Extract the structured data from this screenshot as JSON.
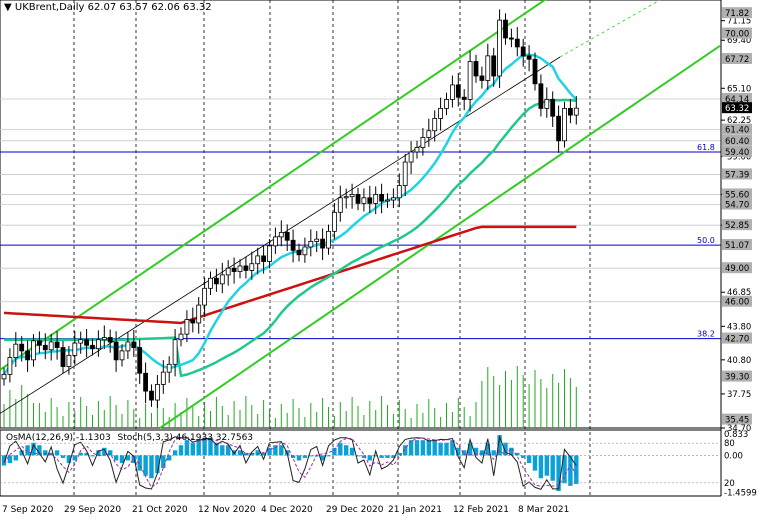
{
  "header": {
    "symbol": "UKBrent,Daily",
    "ohlc": "62.07 63.57 62.06 63.32"
  },
  "indicator_header": {
    "osma": "OsMA(12,26,9) -1.1303",
    "stoch": "Stoch(5,3,3) 46.1933 32.7563"
  },
  "colors": {
    "background": "#ffffff",
    "candle": "#000000",
    "ma_short": "#1fd3e6",
    "ma_mid": "#1ec98a",
    "ma_long": "#cc1111",
    "channel": "#33cc22",
    "fib": "#0000cc",
    "osma_bar": "#0aa0d8",
    "stoch_main": "#222222",
    "stoch_signal": "#9b2f9b",
    "price_tag": "#000000",
    "volume": "#22aa22"
  },
  "chart_data": [
    {
      "type": "candlestick",
      "title": "UKBrent,Daily",
      "x_labels": [
        "7 Sep 2020",
        "29 Sep 2020",
        "21 Oct 2020",
        "12 Nov 2020",
        "4 Dec 2020",
        "29 Dec 2020",
        "21 Jan 2021",
        "12 Feb 2021",
        "8 Mar 2021"
      ],
      "y_ticks": [
        "71.15",
        "69.40",
        "65.10",
        "62.25",
        "59.00",
        "55.60",
        "52.85",
        "46.85",
        "43.80",
        "40.80",
        "37.75",
        "34.70"
      ],
      "price_labels": [
        "71.82",
        "70.00",
        "67.72",
        "64.14",
        "63.32",
        "61.40",
        "60.40",
        "59.40",
        "57.39",
        "55.60",
        "54.70",
        "52.85",
        "51.07",
        "49.00",
        "46.00",
        "42.70",
        "39.30",
        "35.45"
      ],
      "current_price": "63.32",
      "ylim": [
        34.7,
        73.0
      ],
      "close_series": [
        39.5,
        41.0,
        42.2,
        41.6,
        40.8,
        42.5,
        42.1,
        41.7,
        42.4,
        41.9,
        40.2,
        41.2,
        42.3,
        42.6,
        42.1,
        41.8,
        42.6,
        42.8,
        42.4,
        40.8,
        41.6,
        42.4,
        41.9,
        39.6,
        38.0,
        37.2,
        38.6,
        39.7,
        40.4,
        42.6,
        43.1,
        44.4,
        44.1,
        45.7,
        47.2,
        48.1,
        47.6,
        48.4,
        49.0,
        48.7,
        49.2,
        48.8,
        49.4,
        50.1,
        49.6,
        51.0,
        51.8,
        52.2,
        51.5,
        50.6,
        50.2,
        50.9,
        51.4,
        51.6,
        50.8,
        52.3,
        54.0,
        55.3,
        55.4,
        55.6,
        54.8,
        55.3,
        54.8,
        55.6,
        55.0,
        55.1,
        55.3,
        56.4,
        58.5,
        59.4,
        59.8,
        60.7,
        61.3,
        62.4,
        63.3,
        64.1,
        65.4,
        64.3,
        64.1,
        67.5,
        66.2,
        65.8,
        68.0,
        66.2,
        71.2,
        69.6,
        69.5,
        68.8,
        68.0,
        67.7,
        65.5,
        63.3,
        64.1,
        62.6,
        60.4,
        63.3,
        62.7,
        63.32
      ],
      "fib_levels": [
        {
          "label": "61.8",
          "price": 59.4
        },
        {
          "label": "50.0",
          "price": 51.07
        },
        {
          "label": "38.2",
          "price": 42.7
        }
      ]
    },
    {
      "type": "bar",
      "title": "OsMA(12,26,9)",
      "series_name": "OsMA",
      "last_value": -1.1303,
      "y_ticks": [
        "0.833",
        "0.00",
        "-1.4599"
      ],
      "values": [
        -0.4,
        -0.3,
        -0.2,
        0.2,
        0.4,
        0.5,
        0.4,
        0.2,
        0.1,
        0.2,
        -0.1,
        -0.3,
        -0.2,
        0.1,
        0.1,
        0.0,
        0.2,
        0.3,
        0.2,
        -0.2,
        -0.3,
        -0.2,
        -0.3,
        -0.6,
        -0.8,
        -0.9,
        -0.7,
        -0.5,
        -0.2,
        0.2,
        0.4,
        0.6,
        0.5,
        0.6,
        0.7,
        0.7,
        0.5,
        0.4,
        0.4,
        0.2,
        0.2,
        0.1,
        0.1,
        0.2,
        0.1,
        0.3,
        0.4,
        0.4,
        0.2,
        -0.1,
        -0.2,
        -0.1,
        0.0,
        0.0,
        -0.2,
        0.0,
        0.3,
        0.5,
        0.4,
        0.3,
        0.0,
        -0.1,
        -0.2,
        0.0,
        -0.1,
        -0.1,
        -0.1,
        0.1,
        0.4,
        0.6,
        0.6,
        0.6,
        0.6,
        0.6,
        0.5,
        0.5,
        0.6,
        0.3,
        0.2,
        0.5,
        0.3,
        0.2,
        0.5,
        0.2,
        0.8,
        0.5,
        0.3,
        0.1,
        -0.1,
        -0.3,
        -0.6,
        -0.9,
        -0.8,
        -1.0,
        -1.4,
        -1.1,
        -1.2,
        -1.13
      ]
    },
    {
      "type": "line",
      "title": "Stoch(5,3,3)",
      "y_ticks": [
        "80",
        "20"
      ],
      "series": [
        {
          "name": "Stoch main",
          "last_value": 46.1933
        },
        {
          "name": "Stoch signal",
          "last_value": 32.7563
        }
      ]
    }
  ]
}
